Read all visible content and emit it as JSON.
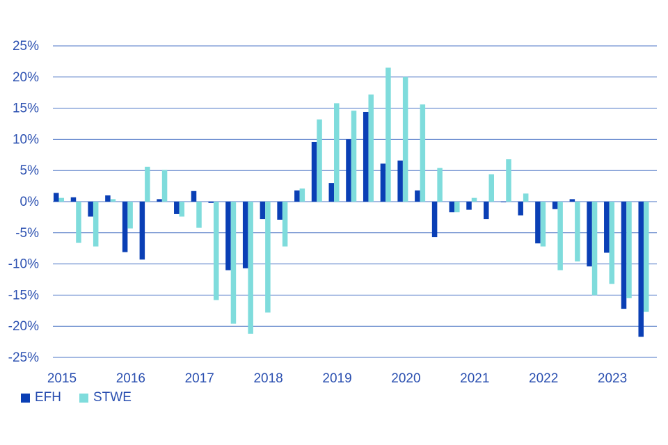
{
  "chart_data": {
    "type": "bar",
    "ylim": [
      -25,
      25
    ],
    "yticks": [
      25,
      20,
      15,
      10,
      5,
      0,
      -5,
      -10,
      -15,
      -20,
      -25
    ],
    "ytick_labels": [
      "25%",
      "20%",
      "15%",
      "10%",
      "5%",
      "0%",
      "-5%",
      "-10%",
      "-15%",
      "-20%",
      "-25%"
    ],
    "x_labels": [
      "2015",
      "2016",
      "2017",
      "2018",
      "2019",
      "2020",
      "2021",
      "2022",
      "2023"
    ],
    "grid": true,
    "legend_position": "bottom-left",
    "series": [
      {
        "name": "EFH",
        "color": "#0a3fb5",
        "values": [
          1.4,
          0.7,
          -2.4,
          1.0,
          -8.1,
          -9.3,
          0.4,
          -2.0,
          1.7,
          -0.2,
          -11.0,
          -10.7,
          -2.8,
          -2.9,
          1.8,
          9.6,
          3.0,
          10.0,
          14.4,
          6.1,
          6.6,
          1.8,
          -5.7,
          -1.7,
          -1.3,
          -2.8,
          -0.1,
          -2.2,
          -6.7,
          -1.2,
          0.4,
          -10.4,
          -8.2,
          -17.2,
          -21.7
        ]
      },
      {
        "name": "STWE",
        "color": "#7fdcdc",
        "values": [
          0.6,
          -6.6,
          -7.2,
          0.4,
          -4.3,
          5.6,
          5.1,
          -2.4,
          -4.2,
          -15.8,
          -19.6,
          -21.2,
          -17.8,
          -7.2,
          2.1,
          13.2,
          15.8,
          14.6,
          17.2,
          21.5,
          20.0,
          15.6,
          5.4,
          -1.7,
          0.6,
          4.4,
          6.8,
          1.3,
          -7.2,
          -11.0,
          -9.6,
          -15.0,
          -13.2,
          -15.5,
          -17.7
        ]
      }
    ]
  }
}
